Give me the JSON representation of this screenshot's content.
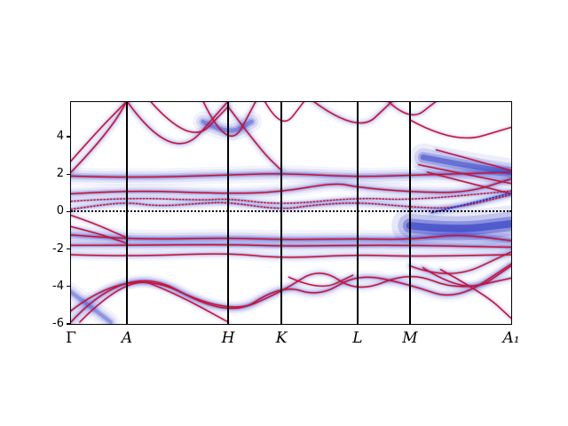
{
  "figure": {
    "background": "#ffffff",
    "description": "Electronic band structure with unfolded spectral function along high-symmetry k-path"
  },
  "chart_data": {
    "type": "line",
    "title": "",
    "xlabel": "",
    "ylabel": "",
    "ylim": [
      -6,
      5.85
    ],
    "yticks": [
      4,
      2,
      0,
      -2,
      -4,
      -6
    ],
    "fermi_level": 0,
    "grid": false,
    "legend": "none",
    "colors": {
      "band": "#d11030",
      "spectral": "#2330c0",
      "axis": "#000000",
      "fermi_line": "#000000"
    },
    "kpoints": [
      {
        "label": "Γ",
        "x": 0.0
      },
      {
        "label": "A",
        "x": 0.127
      },
      {
        "label": "H",
        "x": 0.357
      },
      {
        "label": "K",
        "x": 0.478
      },
      {
        "label": "L",
        "x": 0.651
      },
      {
        "label": "M",
        "x": 0.77
      },
      {
        "label": "A₁",
        "x": 1.0
      }
    ],
    "bands": [
      {
        "x": [
          0.0,
          0.127,
          0.357,
          0.478,
          0.565,
          0.651,
          0.77,
          0.875,
          1.0
        ],
        "e": [
          -5.9,
          -2.65,
          -5.75,
          -3.9,
          -4.55,
          -3.3,
          -3.9,
          -4.75,
          -2.8
        ],
        "w": 1.2,
        "kind": "band"
      },
      {
        "x": [
          0.0,
          0.127,
          0.357,
          0.478,
          0.565,
          0.651,
          0.77,
          0.875,
          1.0
        ],
        "e": [
          -5.3,
          -2.95,
          -5.5,
          -4.3,
          -2.95,
          -4.35,
          -3.2,
          -4.2,
          -3.55
        ],
        "w": 1.0,
        "kind": "band"
      },
      {
        "x": [
          0.02,
          0.127,
          0.24,
          0.357
        ],
        "e": [
          -5.9,
          -3.35,
          -4.4,
          -5.9
        ],
        "w": 0.8,
        "kind": "band"
      },
      {
        "x": [
          0.495,
          0.565,
          0.64
        ],
        "e": [
          -3.5,
          -4.25,
          -3.4
        ],
        "w": 0.7,
        "kind": "band"
      },
      {
        "x": [
          0.0,
          0.127,
          0.357,
          0.478,
          0.651,
          0.77,
          0.88,
          1.0
        ],
        "e": [
          -1.25,
          -1.5,
          -1.4,
          -1.5,
          -1.45,
          -1.5,
          -1.2,
          -1.55
        ],
        "w": 1.6,
        "kind": "band"
      },
      {
        "x": [
          0.0,
          0.127,
          0.357,
          0.478,
          0.651,
          0.77,
          1.0
        ],
        "e": [
          -1.8,
          -1.8,
          -1.75,
          -1.85,
          -1.8,
          -1.8,
          -1.9
        ],
        "w": 1.3,
        "kind": "band"
      },
      {
        "x": [
          0.0,
          0.127,
          0.357,
          0.478,
          0.651,
          0.77,
          1.0
        ],
        "e": [
          -2.3,
          -2.4,
          -2.2,
          -2.5,
          -2.3,
          -2.4,
          -2.3
        ],
        "w": 1.0,
        "kind": "band"
      },
      {
        "x": [
          0.0,
          0.05,
          0.127
        ],
        "e": [
          -0.2,
          -0.6,
          -1.4
        ],
        "w": 0.8,
        "kind": "band"
      },
      {
        "x": [
          0.0,
          0.06,
          0.127
        ],
        "e": [
          -0.8,
          -1.15,
          -1.7
        ],
        "w": 0.8,
        "kind": "band"
      },
      {
        "x": [
          0.77,
          0.86,
          1.0
        ],
        "e": [
          -2.9,
          -3.7,
          -2.15
        ],
        "w": 1.0,
        "kind": "band"
      },
      {
        "x": [
          0.8,
          0.9,
          1.0
        ],
        "e": [
          -3.0,
          -4.5,
          -2.9
        ],
        "w": 0.9,
        "kind": "band"
      },
      {
        "x": [
          0.84,
          0.94,
          1.0
        ],
        "e": [
          -3.1,
          -4.4,
          -5.7
        ],
        "w": 0.8,
        "kind": "band"
      },
      {
        "x": [
          0.0,
          0.05,
          0.127,
          0.2,
          0.3,
          0.357,
          0.478,
          0.55,
          0.651,
          0.77,
          0.87,
          1.0
        ],
        "e": [
          0.12,
          0.3,
          0.5,
          0.28,
          0.45,
          0.5,
          0.1,
          0.35,
          0.5,
          0.25,
          0.15,
          0.9
        ],
        "w": 1.1,
        "kind": "band",
        "dots": true
      },
      {
        "x": [
          0.0,
          0.127,
          0.3,
          0.357,
          0.478,
          0.651,
          0.77,
          1.0
        ],
        "e": [
          0.55,
          0.75,
          0.6,
          0.7,
          0.35,
          0.75,
          0.6,
          1.1
        ],
        "w": 0.9,
        "kind": "band",
        "dots": true
      },
      {
        "x": [
          0.0,
          0.127,
          0.357,
          0.478,
          0.6,
          0.651,
          0.77,
          0.9,
          1.0
        ],
        "e": [
          0.95,
          1.15,
          0.95,
          1.05,
          1.55,
          1.3,
          1.05,
          1.0,
          1.75
        ],
        "w": 1.3,
        "kind": "band"
      },
      {
        "x": [
          0.0,
          0.127,
          0.357,
          0.478,
          0.651,
          0.77,
          1.0
        ],
        "e": [
          1.9,
          1.8,
          1.95,
          2.05,
          1.85,
          1.95,
          2.1
        ],
        "w": 1.5,
        "kind": "band"
      },
      {
        "x": [
          0.0,
          0.045,
          0.1,
          0.127
        ],
        "e": [
          2.1,
          3.2,
          4.8,
          5.9
        ],
        "w": 1.0,
        "kind": "band"
      },
      {
        "x": [
          0.0,
          0.06,
          0.127
        ],
        "e": [
          2.7,
          4.3,
          5.9
        ],
        "w": 0.8,
        "kind": "band"
      },
      {
        "x": [
          0.127,
          0.23,
          0.357
        ],
        "e": [
          5.9,
          2.5,
          5.9
        ],
        "w": 1.0,
        "kind": "band"
      },
      {
        "x": [
          0.18,
          0.27,
          0.357
        ],
        "e": [
          5.9,
          3.5,
          5.6
        ],
        "w": 0.8,
        "kind": "band"
      },
      {
        "x": [
          0.3,
          0.357,
          0.42
        ],
        "e": [
          5.9,
          3.1,
          5.9
        ],
        "w": 0.9,
        "kind": "band"
      },
      {
        "x": [
          0.357,
          0.43,
          0.478
        ],
        "e": [
          5.6,
          3.3,
          2.2
        ],
        "w": 1.0,
        "kind": "band"
      },
      {
        "x": [
          0.44,
          0.478,
          0.53
        ],
        "e": [
          5.9,
          4.3,
          5.9
        ],
        "w": 0.7,
        "kind": "band"
      },
      {
        "x": [
          0.55,
          0.651,
          0.73
        ],
        "e": [
          5.9,
          4.15,
          5.9
        ],
        "w": 1.0,
        "kind": "band"
      },
      {
        "x": [
          0.72,
          0.77,
          0.83
        ],
        "e": [
          5.9,
          4.8,
          5.9
        ],
        "w": 0.9,
        "kind": "band"
      },
      {
        "x": [
          0.77,
          0.87,
          1.0
        ],
        "e": [
          4.9,
          3.6,
          4.5
        ],
        "w": 0.7,
        "kind": "band"
      },
      {
        "x": [
          0.79,
          1.0
        ],
        "e": [
          2.5,
          1.5
        ],
        "w": 0.8,
        "kind": "band"
      },
      {
        "x": [
          0.81,
          1.0
        ],
        "e": [
          2.1,
          0.95
        ],
        "w": 0.8,
        "kind": "band"
      },
      {
        "x": [
          0.83,
          1.0
        ],
        "e": [
          3.3,
          2.2
        ],
        "w": 0.7,
        "kind": "band"
      },
      {
        "x": [
          0.82,
          0.91,
          1.0
        ],
        "e": [
          -0.05,
          0.45,
          1.0
        ],
        "w": 1.0,
        "kind": "blue",
        "dots": true
      },
      {
        "x": [
          0.77,
          0.87,
          1.0
        ],
        "e": [
          -0.75,
          -1.0,
          -0.65
        ],
        "w": 3.2,
        "kind": "smear"
      },
      {
        "x": [
          0.8,
          0.9,
          1.0
        ],
        "e": [
          2.9,
          2.45,
          2.1
        ],
        "w": 2.4,
        "kind": "smear"
      },
      {
        "x": [
          0.0,
          0.04,
          0.09
        ],
        "e": [
          -4.3,
          -5.0,
          -5.9
        ],
        "w": 1.6,
        "kind": "smear"
      },
      {
        "x": [
          0.3,
          0.357,
          0.41
        ],
        "e": [
          4.8,
          4.1,
          4.8
        ],
        "w": 1.8,
        "kind": "smear"
      }
    ]
  }
}
